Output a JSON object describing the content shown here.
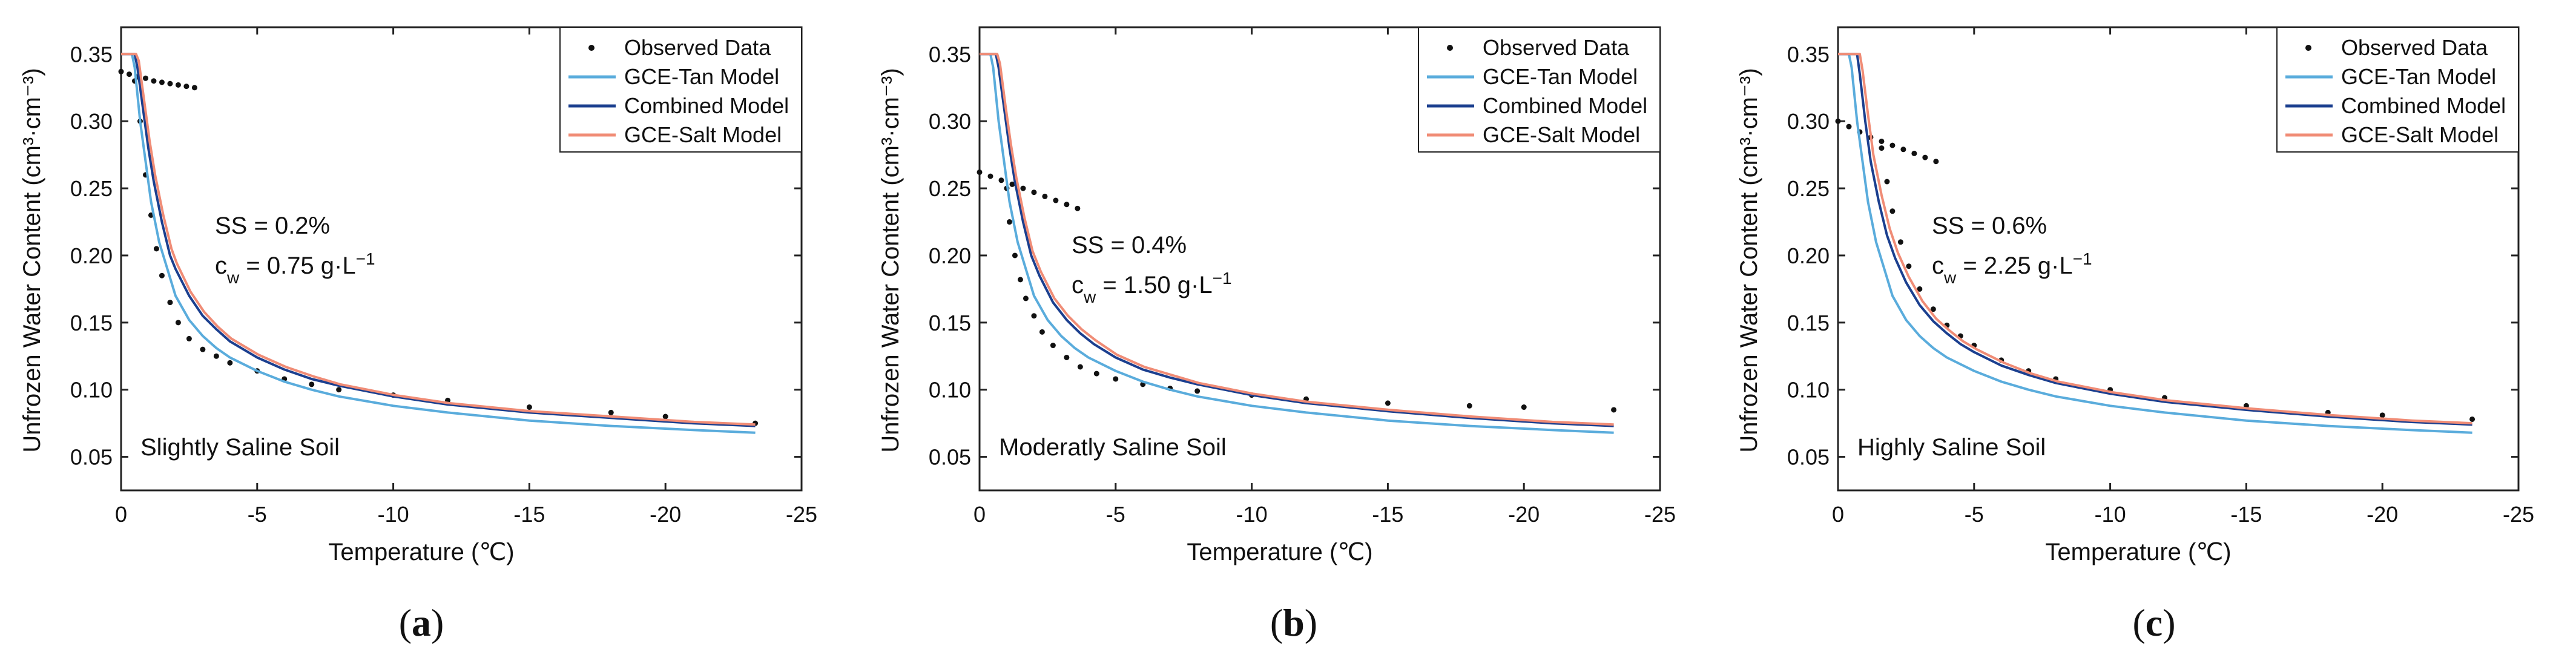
{
  "figure": {
    "panels": [
      {
        "caption_letter": "a",
        "annotations": {
          "ss": "SS = 0.2%",
          "cw_value": "0.75",
          "soil": "Slightly Saline Soil"
        }
      },
      {
        "caption_letter": "b",
        "annotations": {
          "ss": "SS = 0.4%",
          "cw_value": "1.50",
          "soil": "Moderatly Saline Soil"
        }
      },
      {
        "caption_letter": "c",
        "annotations": {
          "ss": "SS = 0.6%",
          "cw_value": "2.25",
          "soil": "Highly Saline Soil"
        }
      }
    ]
  },
  "colors": {
    "observed": "#111111",
    "gce_tan": "#5aacdc",
    "combined": "#1b3f8f",
    "gce_salt": "#f08c76",
    "axis": "#222222"
  },
  "chart_data": [
    {
      "type": "line",
      "xlabel": "Temperature (℃)",
      "ylabel": "Unfrozen Water Content (cm³·cm⁻³)",
      "xlim": [
        0,
        -25
      ],
      "ylim": [
        0.025,
        0.37
      ],
      "x_ticks": [
        0,
        -5,
        -10,
        -15,
        -20,
        -25
      ],
      "y_ticks": [
        0.05,
        0.1,
        0.15,
        0.2,
        0.25,
        0.3,
        0.35
      ],
      "legend_position": "top-right",
      "series": [
        {
          "name": "Observed Data",
          "kind": "scatter",
          "x": [
            0,
            -0.3,
            -0.6,
            -0.9,
            -1.2,
            -1.5,
            -1.8,
            -2.1,
            -2.4,
            -2.7,
            -0.5,
            -0.7,
            -0.9,
            -1.1,
            -1.3,
            -1.5,
            -1.8,
            -2.1,
            -2.5,
            -3.0,
            -3.5,
            -4.0,
            -5.0,
            -6.0,
            -7.0,
            -8.0,
            -10.0,
            -12.0,
            -15.0,
            -18.0,
            -20.0,
            -23.3
          ],
          "y": [
            0.337,
            0.335,
            0.333,
            0.332,
            0.33,
            0.329,
            0.328,
            0.327,
            0.326,
            0.325,
            0.33,
            0.3,
            0.26,
            0.23,
            0.205,
            0.185,
            0.165,
            0.15,
            0.138,
            0.13,
            0.125,
            0.12,
            0.114,
            0.108,
            0.104,
            0.1,
            0.096,
            0.092,
            0.087,
            0.083,
            0.08,
            0.075
          ]
        },
        {
          "name": "GCE-Tan Model",
          "kind": "line",
          "x": [
            0,
            -0.4,
            -0.5,
            -0.7,
            -0.9,
            -1.1,
            -1.4,
            -1.7,
            -2.0,
            -2.5,
            -3.0,
            -3.5,
            -4.0,
            -5.0,
            -6.0,
            -7.0,
            -8.0,
            -10.0,
            -12.0,
            -15.0,
            -18.0,
            -21.0,
            -23.3
          ],
          "y": [
            0.35,
            0.35,
            0.34,
            0.3,
            0.27,
            0.24,
            0.21,
            0.19,
            0.17,
            0.152,
            0.14,
            0.131,
            0.124,
            0.114,
            0.106,
            0.1,
            0.095,
            0.088,
            0.083,
            0.077,
            0.073,
            0.07,
            0.068
          ]
        },
        {
          "name": "Combined Model",
          "kind": "line",
          "x": [
            0,
            -0.5,
            -0.6,
            -0.8,
            -1.0,
            -1.2,
            -1.5,
            -1.8,
            -2.0,
            -2.5,
            -3.0,
            -3.5,
            -4.0,
            -5.0,
            -6.0,
            -7.0,
            -8.0,
            -10.0,
            -12.0,
            -15.0,
            -18.0,
            -21.0,
            -23.3
          ],
          "y": [
            0.35,
            0.35,
            0.34,
            0.31,
            0.28,
            0.255,
            0.225,
            0.2,
            0.19,
            0.17,
            0.155,
            0.145,
            0.136,
            0.124,
            0.115,
            0.108,
            0.103,
            0.095,
            0.089,
            0.083,
            0.079,
            0.075,
            0.073
          ]
        },
        {
          "name": "GCE-Salt Model",
          "kind": "line",
          "x": [
            0,
            -0.55,
            -0.65,
            -0.85,
            -1.05,
            -1.25,
            -1.55,
            -1.85,
            -2.05,
            -2.55,
            -3.05,
            -3.55,
            -4.05,
            -5.05,
            -6.05,
            -7.05,
            -8.05,
            -10.05,
            -12.05,
            -15.05,
            -18.05,
            -21.05,
            -23.3
          ],
          "y": [
            0.35,
            0.35,
            0.345,
            0.315,
            0.285,
            0.26,
            0.23,
            0.205,
            0.194,
            0.173,
            0.158,
            0.147,
            0.138,
            0.126,
            0.117,
            0.11,
            0.104,
            0.096,
            0.09,
            0.084,
            0.08,
            0.076,
            0.074
          ]
        }
      ]
    },
    {
      "type": "line",
      "xlabel": "Temperature (℃)",
      "ylabel": "Unfrozen Water Content (cm³·cm⁻³)",
      "xlim": [
        0,
        -25
      ],
      "ylim": [
        0.025,
        0.37
      ],
      "x_ticks": [
        0,
        -5,
        -10,
        -15,
        -20,
        -25
      ],
      "y_ticks": [
        0.05,
        0.1,
        0.15,
        0.2,
        0.25,
        0.3,
        0.35
      ],
      "legend_position": "top-right",
      "series": [
        {
          "name": "Observed Data",
          "kind": "scatter",
          "x": [
            0,
            -0.4,
            -0.8,
            -1.2,
            -1.6,
            -2.0,
            -2.4,
            -2.8,
            -3.2,
            -3.6,
            -1.0,
            -1.1,
            -1.3,
            -1.5,
            -1.7,
            -2.0,
            -2.3,
            -2.7,
            -3.2,
            -3.7,
            -4.3,
            -5.0,
            -6.0,
            -7.0,
            -8.0,
            -10.0,
            -12.0,
            -15.0,
            -18.0,
            -20.0,
            -23.3
          ],
          "y": [
            0.262,
            0.259,
            0.256,
            0.253,
            0.25,
            0.247,
            0.244,
            0.241,
            0.238,
            0.235,
            0.25,
            0.225,
            0.2,
            0.182,
            0.168,
            0.155,
            0.143,
            0.133,
            0.124,
            0.117,
            0.112,
            0.108,
            0.104,
            0.101,
            0.099,
            0.096,
            0.093,
            0.09,
            0.088,
            0.087,
            0.085
          ]
        },
        {
          "name": "GCE-Tan Model",
          "kind": "line",
          "x": [
            0,
            -0.4,
            -0.5,
            -0.7,
            -0.9,
            -1.1,
            -1.4,
            -1.7,
            -2.0,
            -2.5,
            -3.0,
            -3.5,
            -4.0,
            -5.0,
            -6.0,
            -7.0,
            -8.0,
            -10.0,
            -12.0,
            -15.0,
            -18.0,
            -21.0,
            -23.3
          ],
          "y": [
            0.35,
            0.35,
            0.34,
            0.3,
            0.27,
            0.24,
            0.21,
            0.19,
            0.17,
            0.152,
            0.14,
            0.131,
            0.124,
            0.114,
            0.106,
            0.1,
            0.095,
            0.088,
            0.083,
            0.077,
            0.073,
            0.07,
            0.068
          ]
        },
        {
          "name": "Combined Model",
          "kind": "line",
          "x": [
            0,
            -0.6,
            -0.7,
            -0.9,
            -1.1,
            -1.3,
            -1.6,
            -1.9,
            -2.2,
            -2.7,
            -3.2,
            -3.7,
            -4.2,
            -5.0,
            -6.0,
            -7.0,
            -8.0,
            -10.0,
            -12.0,
            -15.0,
            -18.0,
            -21.0,
            -23.3
          ],
          "y": [
            0.35,
            0.35,
            0.34,
            0.31,
            0.28,
            0.255,
            0.225,
            0.2,
            0.185,
            0.165,
            0.152,
            0.142,
            0.134,
            0.124,
            0.115,
            0.109,
            0.104,
            0.096,
            0.09,
            0.084,
            0.079,
            0.075,
            0.073
          ]
        },
        {
          "name": "GCE-Salt Model",
          "kind": "line",
          "x": [
            0,
            -0.65,
            -0.75,
            -0.95,
            -1.15,
            -1.35,
            -1.65,
            -1.95,
            -2.25,
            -2.75,
            -3.25,
            -3.75,
            -4.25,
            -5.05,
            -6.05,
            -7.05,
            -8.05,
            -10.05,
            -12.05,
            -15.05,
            -18.05,
            -21.05,
            -23.3
          ],
          "y": [
            0.35,
            0.35,
            0.343,
            0.312,
            0.283,
            0.258,
            0.228,
            0.203,
            0.188,
            0.168,
            0.155,
            0.145,
            0.137,
            0.126,
            0.117,
            0.111,
            0.105,
            0.097,
            0.091,
            0.085,
            0.08,
            0.076,
            0.074
          ]
        }
      ]
    },
    {
      "type": "line",
      "xlabel": "Temperature (℃)",
      "ylabel": "Unfrozen Water Content (cm³·cm⁻³)",
      "xlim": [
        0,
        -25
      ],
      "ylim": [
        0.025,
        0.37
      ],
      "x_ticks": [
        0,
        -5,
        -10,
        -15,
        -20,
        -25
      ],
      "y_ticks": [
        0.05,
        0.1,
        0.15,
        0.2,
        0.25,
        0.3,
        0.35
      ],
      "legend_position": "top-right",
      "series": [
        {
          "name": "Observed Data",
          "kind": "scatter",
          "x": [
            0,
            -0.4,
            -0.8,
            -1.2,
            -1.6,
            -2.0,
            -2.4,
            -2.8,
            -3.2,
            -3.6,
            -1.6,
            -1.8,
            -2.0,
            -2.3,
            -2.6,
            -3.0,
            -3.5,
            -4.0,
            -4.5,
            -5.0,
            -6.0,
            -7.0,
            -8.0,
            -10.0,
            -12.0,
            -15.0,
            -18.0,
            -20.0,
            -23.3
          ],
          "y": [
            0.3,
            0.296,
            0.292,
            0.288,
            0.285,
            0.282,
            0.279,
            0.276,
            0.273,
            0.27,
            0.28,
            0.255,
            0.233,
            0.21,
            0.192,
            0.175,
            0.16,
            0.148,
            0.14,
            0.133,
            0.122,
            0.114,
            0.108,
            0.1,
            0.094,
            0.088,
            0.083,
            0.081,
            0.078
          ]
        },
        {
          "name": "GCE-Tan Model",
          "kind": "line",
          "x": [
            0,
            -0.4,
            -0.5,
            -0.7,
            -0.9,
            -1.1,
            -1.4,
            -1.7,
            -2.0,
            -2.5,
            -3.0,
            -3.5,
            -4.0,
            -5.0,
            -6.0,
            -7.0,
            -8.0,
            -10.0,
            -12.0,
            -15.0,
            -18.0,
            -21.0,
            -23.3
          ],
          "y": [
            0.35,
            0.35,
            0.34,
            0.3,
            0.27,
            0.24,
            0.21,
            0.19,
            0.17,
            0.152,
            0.14,
            0.131,
            0.124,
            0.114,
            0.106,
            0.1,
            0.095,
            0.088,
            0.083,
            0.077,
            0.073,
            0.07,
            0.068
          ]
        },
        {
          "name": "Combined Model",
          "kind": "line",
          "x": [
            0,
            -0.7,
            -0.8,
            -1.0,
            -1.2,
            -1.5,
            -1.8,
            -2.1,
            -2.5,
            -3.0,
            -3.5,
            -4.0,
            -4.5,
            -5.0,
            -6.0,
            -7.0,
            -8.0,
            -10.0,
            -12.0,
            -15.0,
            -18.0,
            -21.0,
            -23.3
          ],
          "y": [
            0.35,
            0.35,
            0.335,
            0.3,
            0.27,
            0.24,
            0.215,
            0.198,
            0.18,
            0.163,
            0.151,
            0.142,
            0.134,
            0.128,
            0.118,
            0.111,
            0.105,
            0.097,
            0.091,
            0.085,
            0.08,
            0.076,
            0.074
          ]
        },
        {
          "name": "GCE-Salt Model",
          "kind": "line",
          "x": [
            0,
            -0.8,
            -0.9,
            -1.1,
            -1.3,
            -1.6,
            -1.9,
            -2.2,
            -2.6,
            -3.1,
            -3.6,
            -4.1,
            -4.6,
            -5.1,
            -6.1,
            -7.1,
            -8.1,
            -10.1,
            -12.1,
            -15.1,
            -18.1,
            -21.1,
            -23.3
          ],
          "y": [
            0.35,
            0.35,
            0.338,
            0.305,
            0.275,
            0.245,
            0.22,
            0.202,
            0.184,
            0.166,
            0.153,
            0.144,
            0.136,
            0.13,
            0.12,
            0.112,
            0.106,
            0.098,
            0.092,
            0.086,
            0.081,
            0.077,
            0.075
          ]
        }
      ]
    }
  ]
}
